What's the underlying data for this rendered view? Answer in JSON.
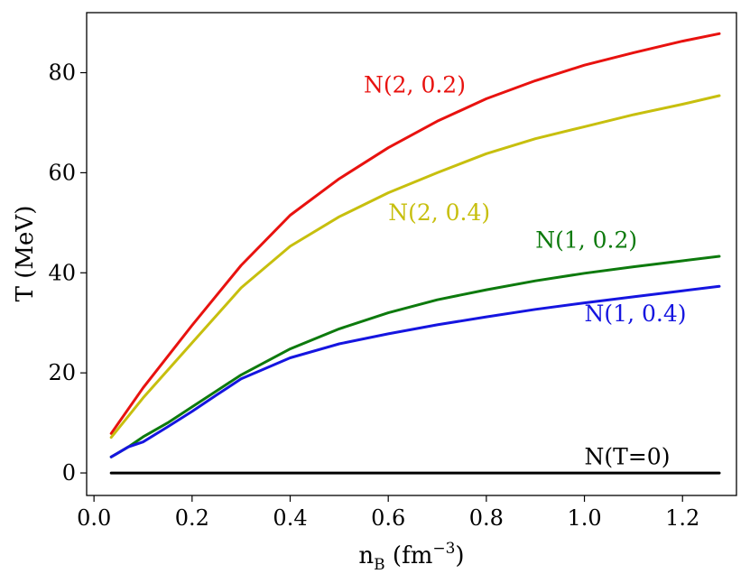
{
  "chart_data": {
    "type": "line",
    "title": "",
    "xlabel": "n",
    "xlabel_sub": "B",
    "xlabel_unit_open": " (fm",
    "xlabel_sup": "−3",
    "xlabel_unit_close": ")",
    "ylabel": "T (MeV)",
    "xlim": [
      -0.015,
      1.31
    ],
    "ylim": [
      -4.5,
      92
    ],
    "xticks": [
      0.0,
      0.2,
      0.4,
      0.6,
      0.8,
      1.0,
      1.2
    ],
    "xtick_labels": [
      "0.0",
      "0.2",
      "0.4",
      "0.6",
      "0.8",
      "1.0",
      "1.2"
    ],
    "yticks": [
      0,
      20,
      40,
      60,
      80
    ],
    "ytick_labels": [
      "0",
      "20",
      "40",
      "60",
      "80"
    ],
    "grid": false,
    "series": [
      {
        "name": "N(2, 0.2)",
        "color": "#e8120f",
        "label_pos": [
          0.55,
          76
        ],
        "x": [
          0.035,
          0.1,
          0.2,
          0.3,
          0.4,
          0.5,
          0.6,
          0.7,
          0.8,
          0.9,
          1.0,
          1.1,
          1.2,
          1.275
        ],
        "y": [
          7.9,
          17,
          29.5,
          41.5,
          51.5,
          58.8,
          65,
          70.3,
          74.8,
          78.4,
          81.5,
          84,
          86.3,
          87.8
        ]
      },
      {
        "name": "N(2, 0.4)",
        "color": "#c7bf0e",
        "label_pos": [
          0.6,
          50.5
        ],
        "x": [
          0.035,
          0.1,
          0.2,
          0.3,
          0.4,
          0.5,
          0.6,
          0.7,
          0.8,
          0.9,
          1.0,
          1.1,
          1.2,
          1.275
        ],
        "y": [
          7.1,
          15,
          26,
          37,
          45.3,
          51.2,
          56,
          60,
          63.8,
          66.8,
          69.2,
          71.6,
          73.7,
          75.4
        ]
      },
      {
        "name": "N(1, 0.2)",
        "color": "#0d7a0d",
        "label_pos": [
          0.9,
          45
        ],
        "x": [
          0.035,
          0.07,
          0.1,
          0.15,
          0.2,
          0.25,
          0.3,
          0.4,
          0.5,
          0.6,
          0.7,
          0.8,
          0.9,
          1.0,
          1.1,
          1.2,
          1.275
        ],
        "y": [
          3.2,
          5.2,
          7.2,
          10,
          13.2,
          16.4,
          19.6,
          24.8,
          28.8,
          32,
          34.6,
          36.6,
          38.4,
          39.9,
          41.2,
          42.4,
          43.3
        ]
      },
      {
        "name": "N(1, 0.4)",
        "color": "#1515e0",
        "label_pos": [
          1.0,
          30.3
        ],
        "x": [
          0.035,
          0.07,
          0.1,
          0.15,
          0.2,
          0.25,
          0.3,
          0.4,
          0.5,
          0.6,
          0.7,
          0.8,
          0.9,
          1.0,
          1.1,
          1.2,
          1.275
        ],
        "y": [
          3.2,
          5.2,
          6.2,
          9.2,
          12.3,
          15.6,
          18.8,
          23,
          25.8,
          27.8,
          29.6,
          31.2,
          32.7,
          34,
          35.2,
          36.4,
          37.3
        ]
      },
      {
        "name": "N(T=0)",
        "color": "#000000",
        "label_pos": [
          1.0,
          1.7
        ],
        "x": [
          0.035,
          1.275
        ],
        "y": [
          0,
          0
        ]
      }
    ]
  }
}
